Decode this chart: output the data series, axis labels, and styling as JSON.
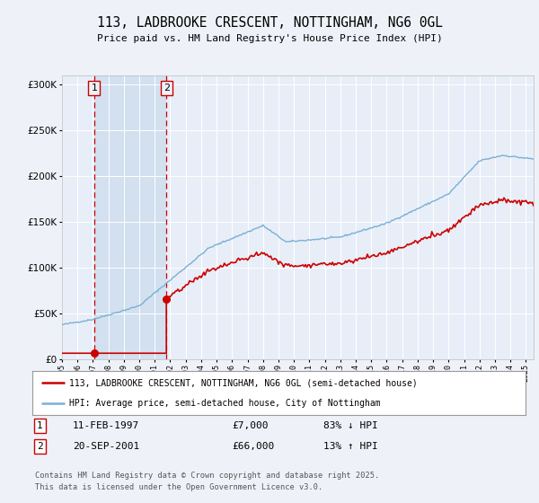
{
  "title": "113, LADBROOKE CRESCENT, NOTTINGHAM, NG6 0GL",
  "subtitle": "Price paid vs. HM Land Registry's House Price Index (HPI)",
  "background_color": "#eef2f8",
  "plot_bg_color": "#e8eef8",
  "shade_color": "#d0dff0",
  "legend_line1": "113, LADBROOKE CRESCENT, NOTTINGHAM, NG6 0GL (semi-detached house)",
  "legend_line2": "HPI: Average price, semi-detached house, City of Nottingham",
  "transaction1_date": "11-FEB-1997",
  "transaction1_price": "£7,000",
  "transaction1_hpi": "83% ↓ HPI",
  "transaction2_date": "20-SEP-2001",
  "transaction2_price": "£66,000",
  "transaction2_hpi": "13% ↑ HPI",
  "footer": "Contains HM Land Registry data © Crown copyright and database right 2025.\nThis data is licensed under the Open Government Licence v3.0.",
  "ylim": [
    0,
    310000
  ],
  "yticks": [
    0,
    50000,
    100000,
    150000,
    200000,
    250000,
    300000
  ],
  "price_color": "#cc0000",
  "hpi_color": "#7ab0d4",
  "vline_color": "#cc0000",
  "t1_year": 1997.083,
  "t2_year": 2001.75,
  "price1": 7000,
  "price2": 66000,
  "xmin": 1995,
  "xmax": 2025.5
}
